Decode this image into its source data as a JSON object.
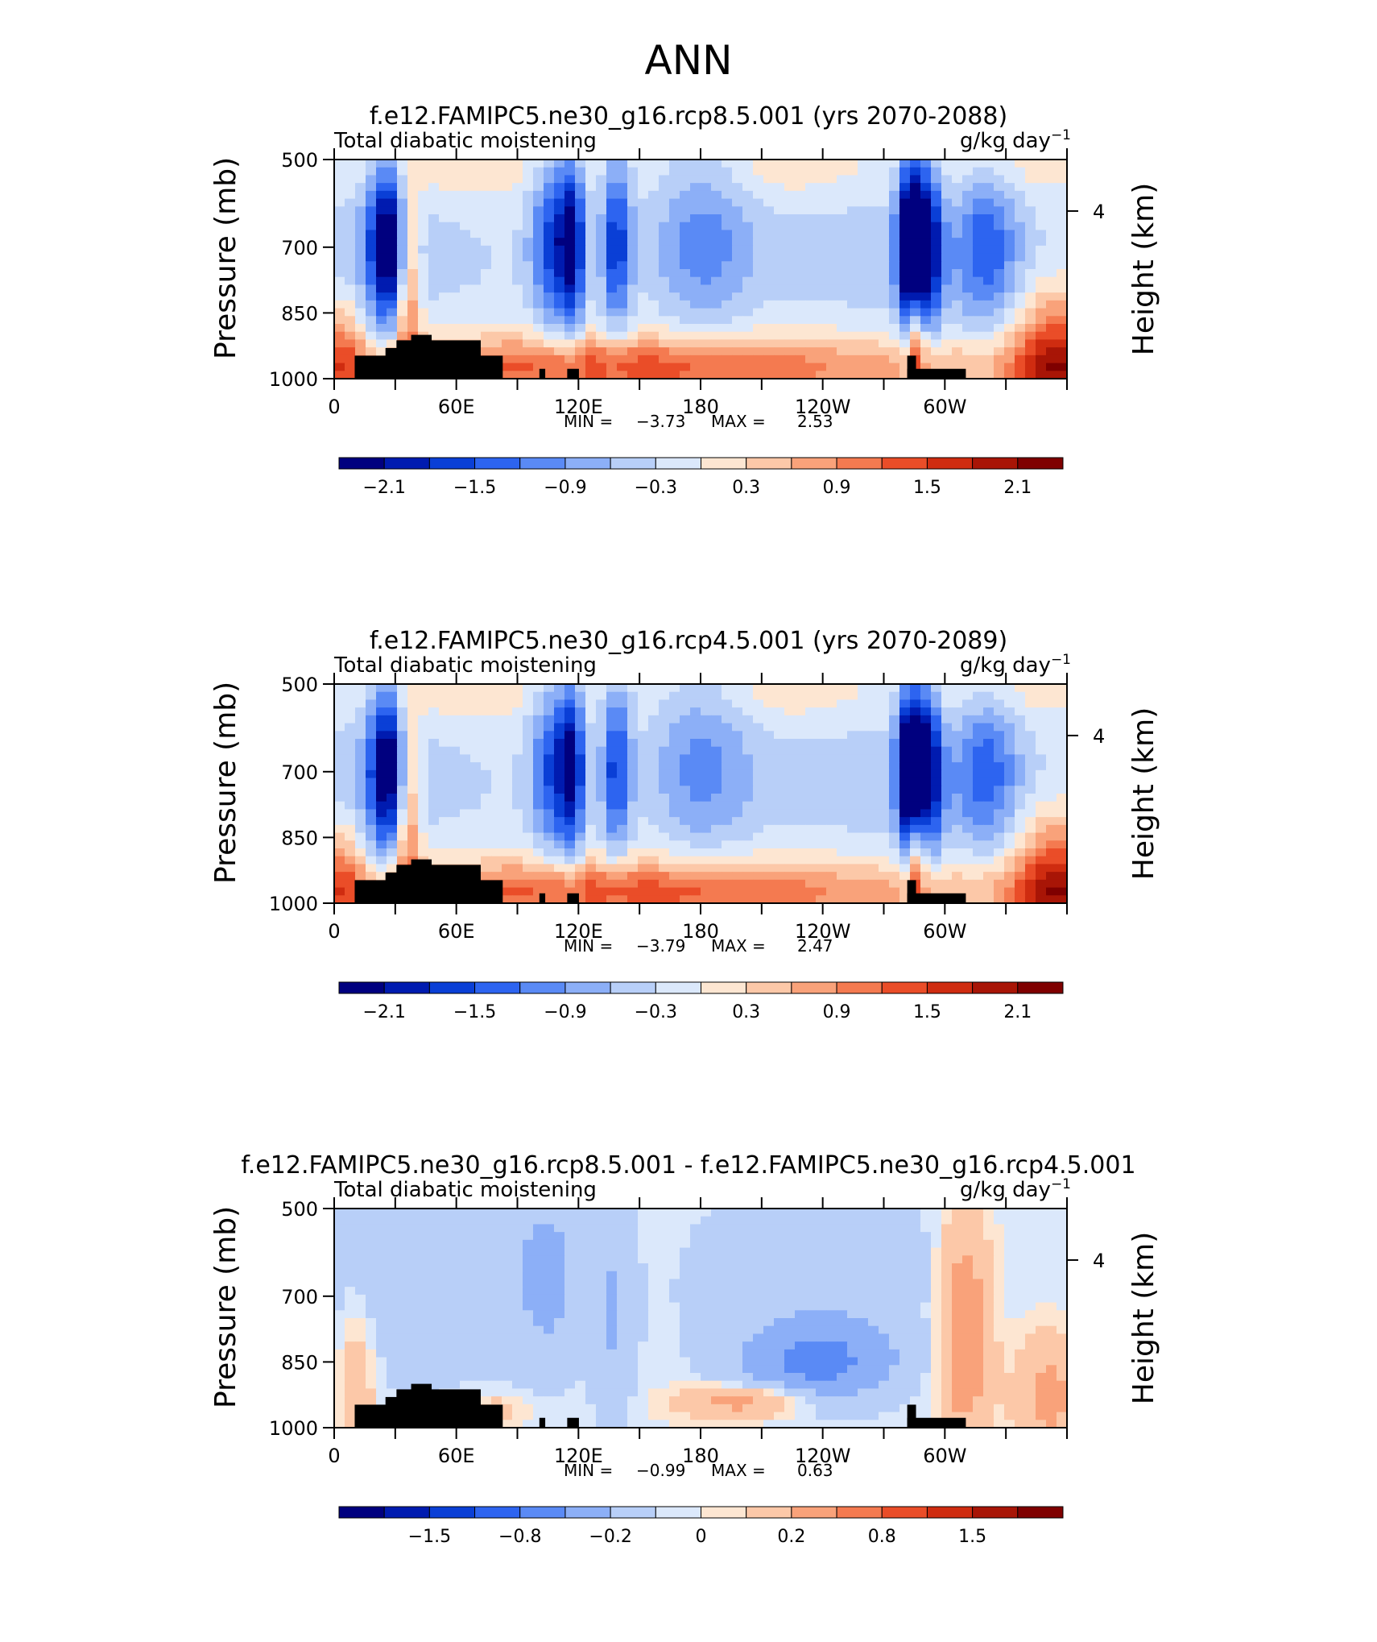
{
  "figure_title": "ANN",
  "chart_data": [
    {
      "type": "heatmap",
      "title": "f.e12.FAMIPC5.ne30_g16.rcp8.5.001 (yrs 2070-2088)",
      "left_label": "Total diabatic moistening",
      "units": "g/kg day",
      "units_exp": "−1",
      "ylabel": "Pressure (mb)",
      "ylabel_right": "Height (km)",
      "yticks": [
        "500",
        "700",
        "850",
        "1000"
      ],
      "yticks_right": [
        "4"
      ],
      "xticks": [
        "0",
        "60E",
        "120E",
        "180",
        "120W",
        "60W"
      ],
      "ylim": [
        500,
        1000
      ],
      "stats": {
        "min_label": "MIN =",
        "min": "−3.73",
        "max_label": "MAX =",
        "max": "2.53"
      },
      "colorbar": {
        "labels": [
          "−2.1",
          "−1.5",
          "−0.9",
          "−0.3",
          "0.3",
          "0.9",
          "1.5",
          "2.1"
        ]
      },
      "variant": "full"
    },
    {
      "type": "heatmap",
      "title": "f.e12.FAMIPC5.ne30_g16.rcp4.5.001 (yrs 2070-2089)",
      "left_label": "Total diabatic moistening",
      "units": "g/kg day",
      "units_exp": "−1",
      "ylabel": "Pressure (mb)",
      "ylabel_right": "Height (km)",
      "yticks": [
        "500",
        "700",
        "850",
        "1000"
      ],
      "yticks_right": [
        "4"
      ],
      "xticks": [
        "0",
        "60E",
        "120E",
        "180",
        "120W",
        "60W"
      ],
      "ylim": [
        500,
        1000
      ],
      "stats": {
        "min_label": "MIN =",
        "min": "−3.79",
        "max_label": "MAX =",
        "max": "2.47"
      },
      "colorbar": {
        "labels": [
          "−2.1",
          "−1.5",
          "−0.9",
          "−0.3",
          "0.3",
          "0.9",
          "1.5",
          "2.1"
        ]
      },
      "variant": "full"
    },
    {
      "type": "heatmap",
      "title": "f.e12.FAMIPC5.ne30_g16.rcp8.5.001 - f.e12.FAMIPC5.ne30_g16.rcp4.5.001",
      "left_label": "Total diabatic moistening",
      "units": "g/kg day",
      "units_exp": "−1",
      "ylabel": "Pressure (mb)",
      "ylabel_right": "Height (km)",
      "yticks": [
        "500",
        "700",
        "850",
        "1000"
      ],
      "yticks_right": [
        "4"
      ],
      "xticks": [
        "0",
        "60E",
        "120E",
        "180",
        "120W",
        "60W"
      ],
      "ylim": [
        500,
        1000
      ],
      "stats": {
        "min_label": "MIN =",
        "min": "−0.99",
        "max_label": "MAX =",
        "max": "0.63"
      },
      "colorbar": {
        "labels": [
          "−1.5",
          "−0.8",
          "−0.2",
          "0",
          "0.2",
          "0.8",
          "1.5"
        ]
      },
      "variant": "diff"
    }
  ],
  "colors": {
    "scale": [
      "#00007f",
      "#001bb0",
      "#0a3fd6",
      "#2d64f0",
      "#5a8af5",
      "#8caff7",
      "#b8cff8",
      "#dbe8fb",
      "#fde6d2",
      "#fcc8a8",
      "#f9a27a",
      "#f47a50",
      "#ea4d28",
      "#cf2c10",
      "#a81506",
      "#7f0000"
    ],
    "terrain": "#000000"
  }
}
